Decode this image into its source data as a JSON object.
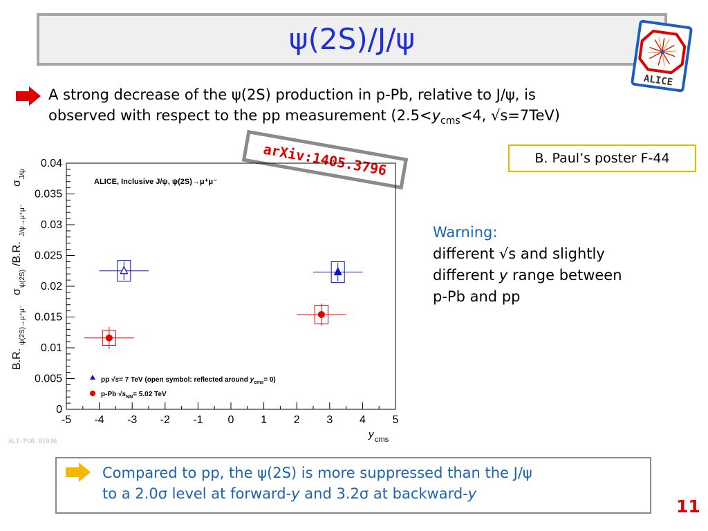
{
  "slide": {
    "title": "ψ(2S)/J/ψ",
    "logo_text": "ALICE",
    "bullet": {
      "line1": "A strong decrease of the ψ(2S) production in p-Pb, relative to J/ψ, is",
      "line2_a": "observed with respect to the pp measurement (2.5<",
      "line2_y": "y",
      "line2_sub": "cms",
      "line2_b": "<4, √s=7TeV)"
    },
    "arxiv": "arXiv:1405.3796",
    "poster": "B. Paul’s poster F-44",
    "warning": {
      "title": "Warning:",
      "line1": "different √s and slightly",
      "line2_a": "different ",
      "line2_y": "y",
      "line2_b": " range between",
      "line3": "p-Pb and pp"
    },
    "ali_pub": "ALI-PUB-81946",
    "conclusion": {
      "line1": "Compared to pp, the ψ(2S) is more suppressed than the J/ψ",
      "line2_a": "to a 2.0σ level at forward-",
      "line2_y": "y",
      "line2_b": " and 3.2σ at backward-",
      "line2_y2": "y"
    },
    "page_number": "11",
    "colors": {
      "title": "#1e2fd6",
      "arrow": "#e00000",
      "conclusion_arrow": "#f5b800",
      "text_blue": "#1a64b4",
      "pp": "#1010d0",
      "ppb": "#e00000"
    }
  },
  "chart_data": {
    "type": "scatter",
    "title": "ALICE, Inclusive J/ψ, ψ(2S)→μ⁺μ⁻",
    "xlabel": "y",
    "xlabel_sub": "cms",
    "ylabel": "σ_ψ(2S)→μ⁺μ⁻ B.R._ψ(2S)→μ⁺μ⁻ / σ_J/ψ B.R._J/ψ→μ⁺μ⁻",
    "ylabel_parts": {
      "br1": "B.R.",
      "sub1": "ψ(2S)→μ⁺μ⁻",
      "sigma1": "σ",
      "sub2": "ψ(2S)",
      "br2": "/B.R.",
      "sub3": "J/ψ→μ⁺μ⁻",
      "sigma2": "σ",
      "sub4": "J/ψ"
    },
    "xlim": [
      -5,
      5
    ],
    "ylim": [
      0,
      0.04
    ],
    "xticks": [
      "-5",
      "-4",
      "-3",
      "-2",
      "-1",
      "0",
      "1",
      "2",
      "3",
      "4",
      "5"
    ],
    "yticks": [
      "0",
      "0.005",
      "0.01",
      "0.015",
      "0.02",
      "0.025",
      "0.03",
      "0.035",
      "0.04"
    ],
    "grid": false,
    "legend_position": "bottom-left",
    "series": [
      {
        "name": "pp √s= 7 TeV (open symbol: reflected around y_cms= 0)",
        "legend_a": "pp  √",
        "legend_s": "s",
        "legend_b": "= 7 TeV (open symbol: reflected around  ",
        "legend_y": "y",
        "legend_sub": "cms",
        "legend_c": "= 0)",
        "color": "#1010d0",
        "marker": "triangle",
        "points": [
          {
            "x": -3.25,
            "y": 0.0225,
            "xerr": 0.75,
            "yerr": 0.0015,
            "syst_dx": 0.2,
            "syst_dy": 0.0017,
            "open": true
          },
          {
            "x": 3.25,
            "y": 0.0223,
            "xerr": 0.75,
            "yerr": 0.0015,
            "syst_dx": 0.2,
            "syst_dy": 0.0017,
            "open": false
          }
        ]
      },
      {
        "name": "p-Pb √s_NN= 5.02 TeV",
        "legend_a": "p-Pb  √",
        "legend_s": "s",
        "legend_sub": "NN",
        "legend_b": "= 5.02 TeV",
        "color": "#e00000",
        "marker": "circle",
        "points": [
          {
            "x": -3.7,
            "y": 0.0116,
            "xerr": 0.75,
            "yerr": 0.0018,
            "syst_dx": 0.2,
            "syst_dy": 0.0012,
            "open": false
          },
          {
            "x": 2.75,
            "y": 0.0154,
            "xerr": 0.75,
            "yerr": 0.0018,
            "syst_dx": 0.2,
            "syst_dy": 0.0015,
            "open": false
          }
        ]
      }
    ]
  }
}
